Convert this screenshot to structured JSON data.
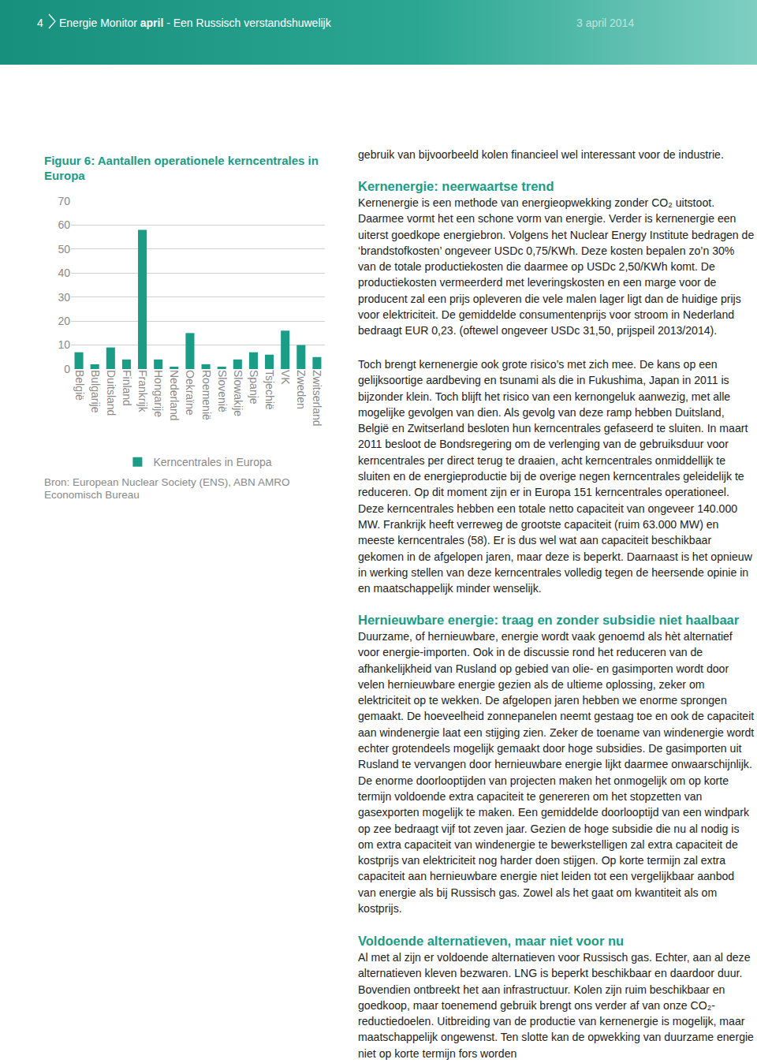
{
  "header": {
    "page": "4",
    "title_start": "Energie Monitor ",
    "title_bold": "april",
    "title_end": " - Een Russisch verstandshuwelijk",
    "date": "3 april 2014"
  },
  "figure": {
    "source": "Bron: European Nuclear Society (ENS), ABN AMRO Economisch Bureau"
  },
  "chart_data": {
    "type": "bar",
    "title": "Figuur 6: Aantallen operationele kerncentrales in Europa",
    "categories": [
      "België",
      "Bulgarije",
      "Duitsland",
      "Finland",
      "Frankrijk",
      "Hongarije",
      "Nederland",
      "Oekraïne",
      "Roemenië",
      "Slovenië",
      "Slowakije",
      "Spanje",
      "Tsjechië",
      "VK",
      "Zweden",
      "Zwitserland"
    ],
    "series": [
      {
        "name": "Kerncentrales in Europa",
        "color": "#1a9c87",
        "values": [
          7,
          2,
          9,
          4,
          58,
          4,
          1,
          15,
          2,
          1,
          4,
          7,
          6,
          16,
          10,
          5
        ]
      }
    ],
    "ylim": [
      0,
      70
    ],
    "yticks": [
      0,
      10,
      20,
      30,
      40,
      50,
      60,
      70
    ],
    "grid": true,
    "legend": "bottom"
  },
  "sections": [
    {
      "paragraphs": [
        "gebruik van bijvoorbeeld kolen financieel wel interessant voor de industrie."
      ]
    },
    {
      "heading": "Kernenergie: neerwaartse trend",
      "paragraphs": [
        "Kernenergie is een methode van energieopwekking zonder CO₂ uitstoot. Daarmee vormt het een schone vorm van energie. Verder is kernenergie een uiterst goedkope energiebron. Volgens het Nuclear Energy Institute bedragen de ‘brandstofkosten’ ongeveer USDc 0,75/KWh. Deze kosten bepalen zo’n 30% van de totale productiekosten die daarmee op USDc 2,50/KWh komt. De productiekosten vermeerderd met leveringskosten en een marge voor de producent zal een prijs opleveren die vele malen lager ligt dan de huidige prijs voor elektriciteit. De gemiddelde consumentenprijs voor stroom in Nederland bedraagt EUR 0,23. (oftewel ongeveer USDc 31,50, prijspeil 2013/2014)."
      ]
    },
    {
      "paragraphs": [
        "Toch brengt kernenergie ook grote risico’s met zich mee. De kans op een gelijksoortige aardbeving en tsunami als die in Fukushima, Japan in 2011 is bijzonder klein. Toch blijft het risico van een kernongeluk aanwezig, met alle mogelijke gevolgen van dien. Als gevolg van deze ramp hebben Duitsland, België en Zwitserland besloten hun kerncentrales gefaseerd te sluiten. In maart 2011 besloot de Bondsregering om de verlenging van de gebruiksduur voor kerncentrales per direct terug te draaien, acht kerncentrales onmiddellijk te sluiten en de energieproductie bij de overige negen kerncentrales geleidelijk te reduceren. Op dit moment zijn er in Europa 151 kerncentrales operationeel. Deze kerncentrales hebben een totale netto capaciteit van ongeveer 140.000 MW. Frankrijk heeft verreweg de grootste capaciteit (ruim 63.000 MW) en meeste kerncentrales (58). Er is dus wel wat aan capaciteit beschikbaar gekomen in de afgelopen jaren, maar deze is beperkt. Daarnaast is het opnieuw in werking stellen van deze kerncentrales volledig tegen de heersende opinie in en maatschappelijk minder wenselijk."
      ]
    },
    {
      "heading": "Hernieuwbare energie: traag en zonder subsidie niet haalbaar",
      "paragraphs": [
        "Duurzame, of hernieuwbare, energie wordt vaak genoemd als hèt alternatief voor energie-importen. Ook in de discussie rond het reduceren van de afhankelijkheid van Rusland op gebied van olie- en gasimporten wordt door velen hernieuwbare energie gezien als de ultieme oplossing, zeker om elektriciteit op te wekken. De afgelopen jaren hebben we enorme sprongen gemaakt. De hoeveelheid zonnepanelen neemt gestaag toe en ook de capaciteit aan windenergie laat een stijging zien. Zeker de toename van windenergie wordt echter grotendeels mogelijk gemaakt door hoge subsidies. De gasimporten uit Rusland te vervangen door hernieuwbare energie lijkt daarmee onwaarschijnlijk. De enorme doorlooptijden van projecten maken het onmogelijk om op korte termijn voldoende extra capaciteit te genereren om het stopzetten van gasexporten mogelijk te maken. Een gemiddelde doorlooptijd van een windpark op zee bedraagt vijf tot zeven jaar. Gezien de hoge subsidie die nu al nodig is om extra capaciteit van windenergie te bewerkstelligen zal extra capaciteit de kostprijs van elektriciteit nog harder doen stijgen. Op korte termijn zal extra capaciteit aan hernieuwbare energie niet leiden tot een vergelijkbaar aanbod van energie als bij Russisch gas. Zowel als het gaat om kwantiteit als om  kostprijs."
      ]
    },
    {
      "heading": "Voldoende alternatieven, maar niet voor nu",
      "paragraphs": [
        "Al met al zijn er voldoende alternatieven voor Russisch gas. Echter, aan al deze alternatieven kleven bezwaren. LNG is beperkt beschikbaar en daardoor duur. Bovendien ontbreekt het aan infrastructuur. Kolen zijn ruim beschikbaar en goedkoop, maar toenemend gebruik brengt ons verder af van onze CO₂-reductiedoelen. Uitbreiding van de productie van kernenergie is mogelijk, maar maatschappelijk ongewenst. Ten slotte kan de opwekking van duurzame energie niet op korte termijn fors worden"
      ]
    }
  ]
}
